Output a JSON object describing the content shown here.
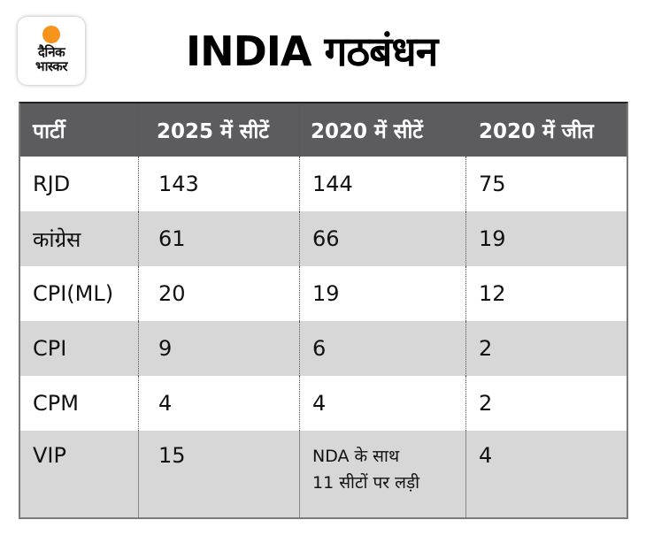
{
  "brand": {
    "logo_line1": "दैनिक",
    "logo_line2": "भास्कर",
    "accent_color": "#f7941d"
  },
  "title": "INDIA गठबंधन",
  "table": {
    "columns": [
      "पार्टी",
      "2025 में सीटें",
      "2020 में सीटें",
      "2020 में जीत"
    ],
    "rows": [
      {
        "party": "RJD",
        "seats_2025": "143",
        "seats_2020": "144",
        "wins_2020": "75"
      },
      {
        "party": "कांग्रेस",
        "seats_2025": "61",
        "seats_2020": "66",
        "wins_2020": "19"
      },
      {
        "party": "CPI(ML)",
        "seats_2025": "20",
        "seats_2020": "19",
        "wins_2020": "12"
      },
      {
        "party": "CPI",
        "seats_2025": "9",
        "seats_2020": "6",
        "wins_2020": "2"
      },
      {
        "party": "CPM",
        "seats_2025": "4",
        "seats_2020": "4",
        "wins_2020": "2"
      },
      {
        "party": "VIP",
        "seats_2025": "15",
        "seats_2020_line1": "NDA के साथ",
        "seats_2020_line2": "11 सीटों पर लड़ी",
        "wins_2020": "4"
      }
    ],
    "header_color": "#5c5b5e",
    "alt_row_color": "#d7d7d7"
  }
}
